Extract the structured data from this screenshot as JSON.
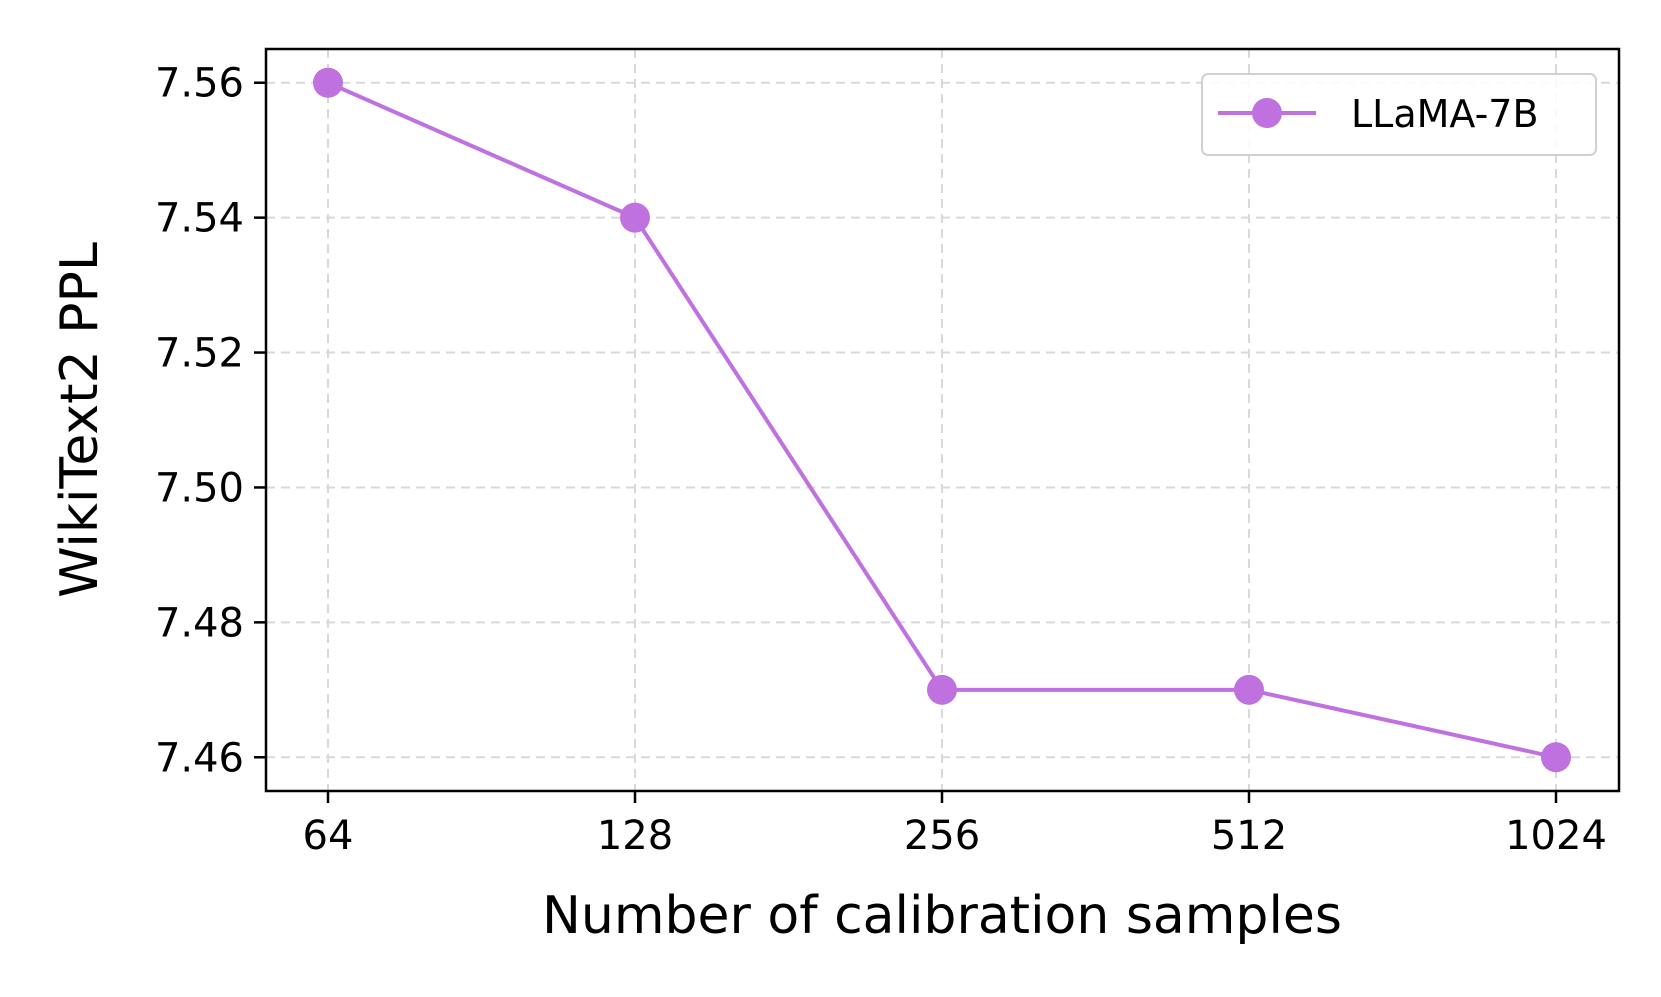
{
  "chart_data": {
    "type": "line",
    "categories": [
      "64",
      "128",
      "256",
      "512",
      "1024"
    ],
    "series": [
      {
        "name": "LLaMA-7B",
        "values": [
          7.56,
          7.54,
          7.47,
          7.47,
          7.46
        ],
        "color": "#c071e0",
        "marker": "circle"
      }
    ],
    "xlabel": "Number of calibration samples",
    "ylabel": "WikiText2 PPL",
    "ylim": [
      7.455,
      7.565
    ],
    "yticks": [
      "7.46",
      "7.48",
      "7.50",
      "7.52",
      "7.54",
      "7.56"
    ],
    "grid": true,
    "grid_style": "dashed",
    "legend_position": "top-right"
  }
}
